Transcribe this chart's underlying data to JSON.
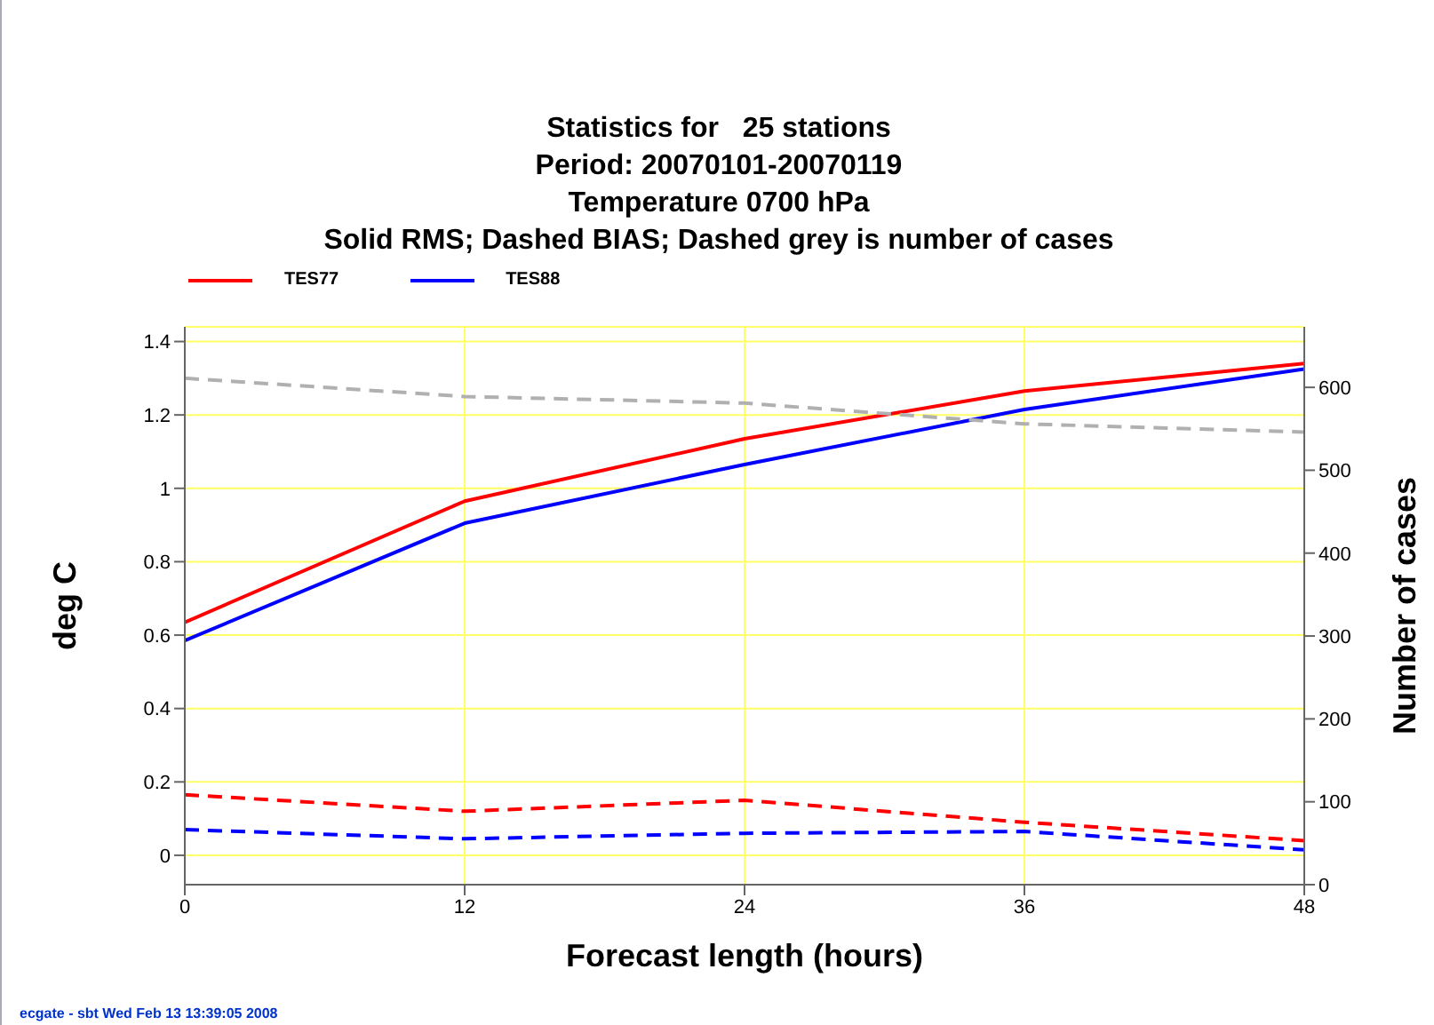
{
  "chart_data": {
    "type": "line",
    "title": "Statistics for   25 stations\nPeriod: 20070101-20070119\nTemperature 0700 hPa\nSolid RMS; Dashed BIAS; Dashed grey is number of cases",
    "xlabel": "Forecast length (hours)",
    "ylabel": "deg C",
    "y2label": "Number of cases",
    "x": [
      0,
      12,
      24,
      36,
      48
    ],
    "series": [
      {
        "name": "TES77",
        "color": "#ff0000",
        "values": [
          0.635,
          0.965,
          1.135,
          1.265,
          1.34
        ]
      },
      {
        "name": "TES88",
        "color": "#0000ff",
        "values": [
          0.585,
          0.905,
          1.065,
          1.215,
          1.325
        ]
      },
      {
        "color": "#ff0000",
        "line_style": "dashed",
        "values": [
          0.165,
          0.12,
          0.15,
          0.09,
          0.04
        ]
      },
      {
        "color": "#0000ff",
        "line_style": "dashed",
        "values": [
          0.07,
          0.045,
          0.06,
          0.065,
          0.015
        ]
      },
      {
        "color": "#b0b0b0",
        "line_style": "dashed",
        "axis": "y2",
        "values": [
          611,
          589,
          581,
          556,
          546
        ]
      }
    ],
    "xlim": [
      0,
      48
    ],
    "xticks": [
      0,
      12,
      24,
      36,
      48
    ],
    "ylim": [
      -0.08,
      1.44
    ],
    "yticks": [
      0,
      0.2,
      0.4,
      0.6,
      0.8,
      1,
      1.2,
      1.4
    ],
    "y2lim": [
      0,
      673
    ],
    "y2ticks": [
      0,
      100,
      200,
      300,
      400,
      500,
      600
    ],
    "grid": true,
    "legend": "top left",
    "line_style": "solid",
    "marker": "none",
    "annotations": [
      "ecgate - sbt Wed Feb 13 13:39:05 2008"
    ]
  }
}
